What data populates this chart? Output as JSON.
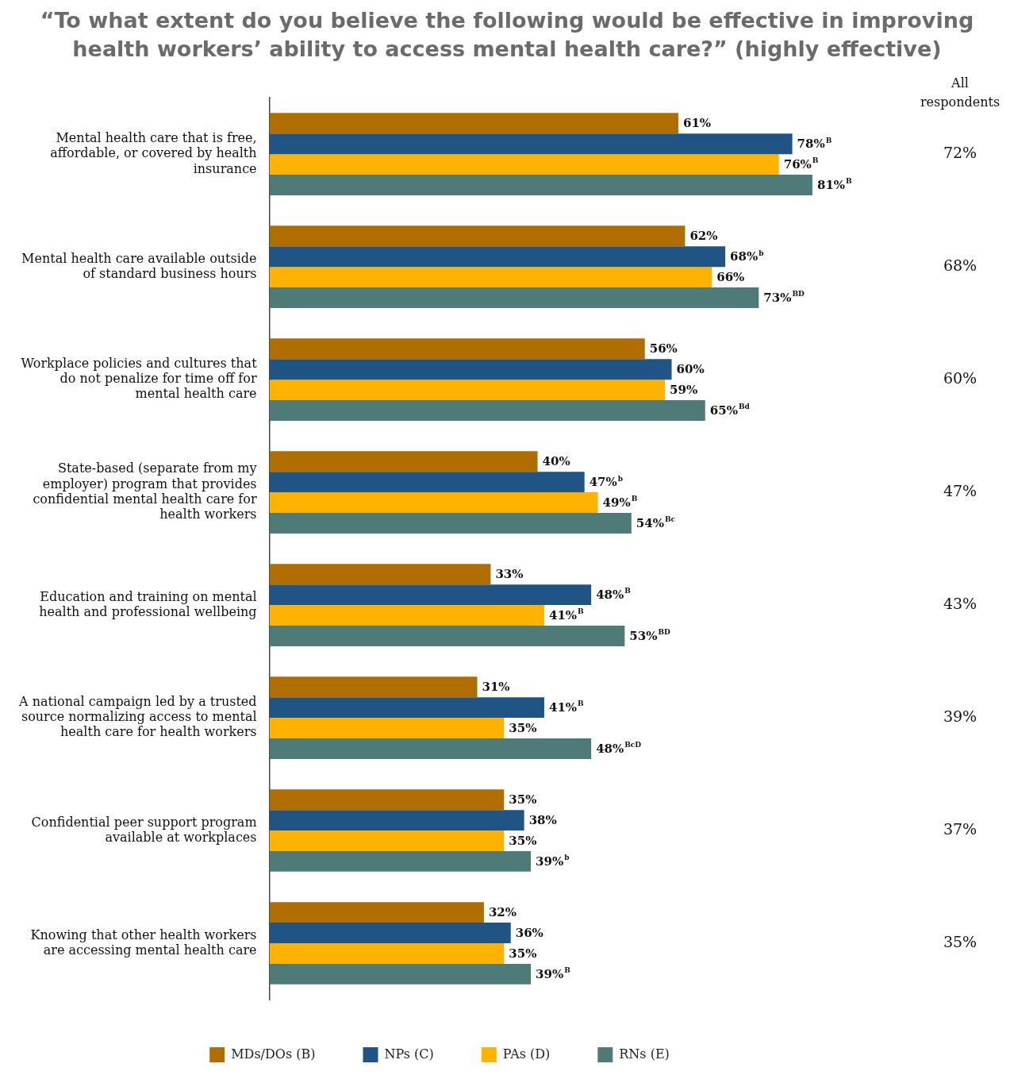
{
  "chart_data": {
    "type": "bar",
    "orientation": "horizontal",
    "title": "“To what extent do you believe the following would be effective in improving health workers’ ability to access mental health care?” (highly effective)",
    "categories": [
      "Mental health care that is free, affordable, or covered by health insurance",
      "Mental health care available outside of standard business hours",
      "Workplace policies and cultures that do not penalize for time off for mental health care",
      "State-based (separate from my employer) program that provides confidential mental health care for health workers",
      "Education and training on mental health and professional wellbeing",
      "A national campaign led by a trusted source normalizing access to mental health care for health workers",
      "Confidential peer support program available at workplaces",
      "Knowing that other health workers are accessing mental health care"
    ],
    "series": [
      {
        "name": "MDs/DOs (B)",
        "color": "#b06e00",
        "values": [
          61,
          62,
          56,
          40,
          33,
          31,
          35,
          32
        ],
        "value_labels": [
          "61%",
          "62%",
          "56%",
          "40%",
          "33%",
          "31%",
          "35%",
          "32%"
        ]
      },
      {
        "name": "NPs (C)",
        "color": "#1f5485",
        "values": [
          78,
          68,
          60,
          47,
          48,
          41,
          38,
          36
        ],
        "value_labels": [
          "78%$^{B}$",
          "68%$^{b}$",
          "60%",
          "47%$^{b}$",
          "48%$^{B}$",
          "41%$^{B}$",
          "38%",
          "36%"
        ]
      },
      {
        "name": "PAs (D)",
        "color": "#ffb300",
        "values": [
          76,
          66,
          59,
          49,
          41,
          35,
          35,
          35
        ],
        "value_labels": [
          "76%$^{B}$",
          "66%",
          "59%",
          "49%$^{B}$",
          "41%$^{B}$",
          "35%",
          "35%",
          "35%"
        ]
      },
      {
        "name": "RNs (E)",
        "color": "#4e7b78",
        "values": [
          81,
          73,
          65,
          54,
          53,
          48,
          39,
          39
        ],
        "value_labels": [
          "81%$^{B}$",
          "73%$^{BD}$",
          "65%$^{Bd}$",
          "54%$^{Bc}$",
          "53%$^{BD}$",
          "48%$^{BcD}$",
          "39%$^{b}$",
          "39%$^{B}$"
        ]
      }
    ],
    "tick_labels": "y",
    "grid": false,
    "legend": "bottom",
    "annotations": [
      "All respondents",
      "72%",
      "68%",
      "60%",
      "47%",
      "43%",
      "39%",
      "37%",
      "35%"
    ]
  }
}
